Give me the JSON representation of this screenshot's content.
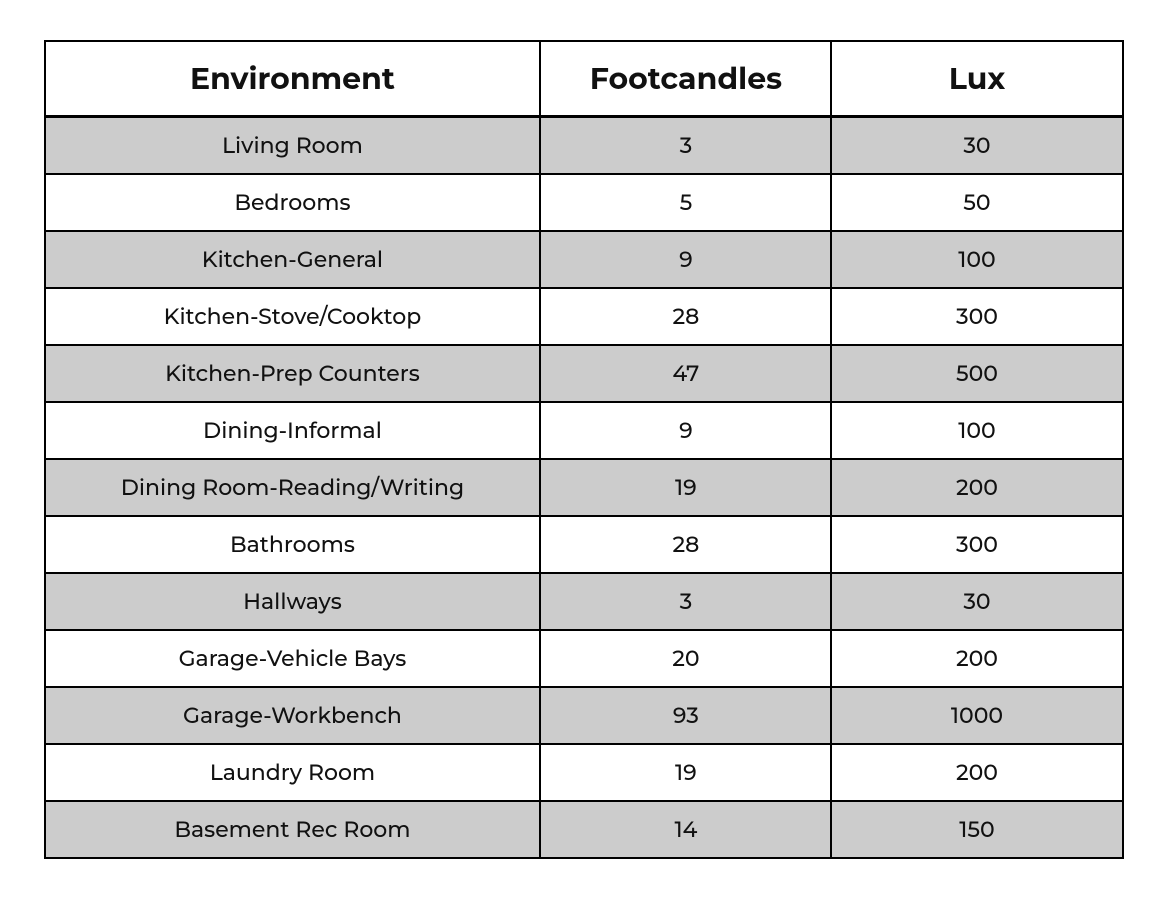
{
  "table": {
    "columns": [
      "Environment",
      "Footcandles",
      "Lux"
    ],
    "column_widths_pct": [
      46,
      27,
      27
    ],
    "header_fontsize": 30,
    "body_fontsize": 22,
    "border_color": "#000000",
    "shade_color": "#cccccc",
    "background_color": "#ffffff",
    "text_color": "#111111",
    "rows": [
      {
        "environment": "Living Room",
        "footcandles": "3",
        "lux": "30",
        "shaded": true
      },
      {
        "environment": "Bedrooms",
        "footcandles": "5",
        "lux": "50",
        "shaded": false
      },
      {
        "environment": "Kitchen-General",
        "footcandles": "9",
        "lux": "100",
        "shaded": true
      },
      {
        "environment": "Kitchen-Stove/Cooktop",
        "footcandles": "28",
        "lux": "300",
        "shaded": false
      },
      {
        "environment": "Kitchen-Prep Counters",
        "footcandles": "47",
        "lux": "500",
        "shaded": true
      },
      {
        "environment": "Dining-Informal",
        "footcandles": "9",
        "lux": "100",
        "shaded": false
      },
      {
        "environment": "Dining Room-Reading/Writing",
        "footcandles": "19",
        "lux": "200",
        "shaded": true
      },
      {
        "environment": "Bathrooms",
        "footcandles": "28",
        "lux": "300",
        "shaded": false
      },
      {
        "environment": "Hallways",
        "footcandles": "3",
        "lux": "30",
        "shaded": true
      },
      {
        "environment": "Garage-Vehicle Bays",
        "footcandles": "20",
        "lux": "200",
        "shaded": false
      },
      {
        "environment": "Garage-Workbench",
        "footcandles": "93",
        "lux": "1000",
        "shaded": true
      },
      {
        "environment": "Laundry Room",
        "footcandles": "19",
        "lux": "200",
        "shaded": false
      },
      {
        "environment": "Basement Rec Room",
        "footcandles": "14",
        "lux": "150",
        "shaded": true
      }
    ]
  }
}
